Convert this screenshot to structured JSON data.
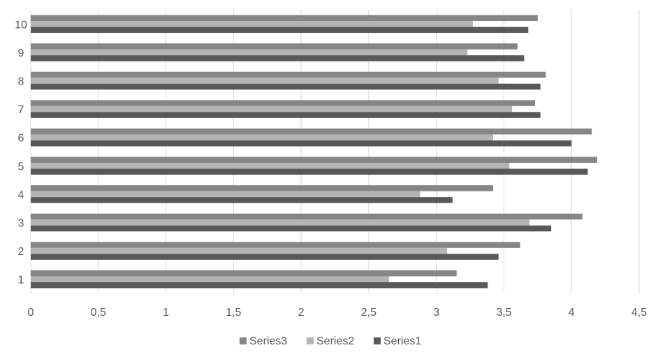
{
  "chart_data": {
    "type": "bar",
    "orientation": "horizontal",
    "categories": [
      "1",
      "2",
      "3",
      "4",
      "5",
      "6",
      "7",
      "8",
      "9",
      "10"
    ],
    "series": [
      {
        "name": "Series1",
        "color": "#595959",
        "values": [
          3.38,
          3.46,
          3.85,
          3.12,
          4.12,
          4.0,
          3.77,
          3.77,
          3.65,
          3.68
        ]
      },
      {
        "name": "Series2",
        "color": "#b4b4b4",
        "values": [
          2.65,
          3.08,
          3.69,
          2.88,
          3.54,
          3.42,
          3.56,
          3.46,
          3.23,
          3.27
        ]
      },
      {
        "name": "Series3",
        "color": "#868686",
        "values": [
          3.15,
          3.62,
          4.08,
          3.42,
          4.19,
          4.15,
          3.73,
          3.81,
          3.6,
          3.75
        ]
      }
    ],
    "xlim": [
      0,
      4.5
    ],
    "x_ticks": [
      "0",
      "0,5",
      "1",
      "1,5",
      "2",
      "2,5",
      "3",
      "3,5",
      "4",
      "4,5"
    ],
    "grid": "vertical",
    "legend": {
      "position": "bottom",
      "order": [
        "Series3",
        "Series2",
        "Series1"
      ]
    },
    "gridline_color": "#d9d9d9",
    "text_color": "#595959"
  }
}
